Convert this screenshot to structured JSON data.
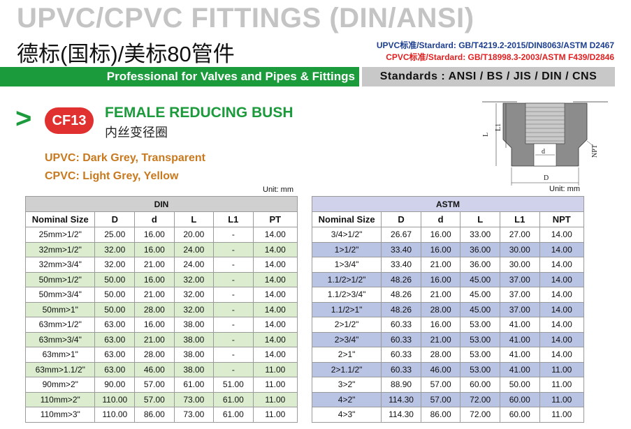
{
  "header": {
    "title_en": "UPVC/CPVC FITTINGS (DIN/ANSI)",
    "title_cn": "德标(国标)/美标80管件",
    "upvc_standard": "UPVC标准/Stardard: GB/T4219.2-2015/DIN8063/ASTM D2467",
    "cpvc_standard": "CPVC标准/Stardard: GB/T18998.3-2003/ASTM F439/D2846",
    "tagline": "Professional for Valves and Pipes & Fittings",
    "standards_band": "Standards : ANSI / BS / JIS / DIN / CNS"
  },
  "product": {
    "chevron": ">",
    "code": "CF13",
    "name_en": "FEMALE REDUCING BUSH",
    "name_cn": "内丝变径圈",
    "upvc_colors": "UPVC: Dark Grey, Transparent",
    "cpvc_colors": "CPVC: Light Grey, Yellow"
  },
  "diagram": {
    "unit": "Unit: mm",
    "labels": {
      "L": "L",
      "L1": "L1",
      "d": "d",
      "D": "D",
      "NPT": "NPT"
    }
  },
  "din_table": {
    "unit": "Unit: mm",
    "title": "DIN",
    "columns": [
      "Nominal Size",
      "D",
      "d",
      "L",
      "L1",
      "PT"
    ],
    "rows": [
      [
        "25mm>1/2\"",
        "25.00",
        "16.00",
        "20.00",
        "-",
        "14.00"
      ],
      [
        "32mm>1/2\"",
        "32.00",
        "16.00",
        "24.00",
        "-",
        "14.00"
      ],
      [
        "32mm>3/4\"",
        "32.00",
        "21.00",
        "24.00",
        "-",
        "14.00"
      ],
      [
        "50mm>1/2\"",
        "50.00",
        "16.00",
        "32.00",
        "-",
        "14.00"
      ],
      [
        "50mm>3/4\"",
        "50.00",
        "21.00",
        "32.00",
        "-",
        "14.00"
      ],
      [
        "50mm>1\"",
        "50.00",
        "28.00",
        "32.00",
        "-",
        "14.00"
      ],
      [
        "63mm>1/2\"",
        "63.00",
        "16.00",
        "38.00",
        "-",
        "14.00"
      ],
      [
        "63mm>3/4\"",
        "63.00",
        "21.00",
        "38.00",
        "-",
        "14.00"
      ],
      [
        "63mm>1\"",
        "63.00",
        "28.00",
        "38.00",
        "-",
        "14.00"
      ],
      [
        "63mm>1.1/2\"",
        "63.00",
        "46.00",
        "38.00",
        "-",
        "11.00"
      ],
      [
        "90mm>2\"",
        "90.00",
        "57.00",
        "61.00",
        "51.00",
        "11.00"
      ],
      [
        "110mm>2\"",
        "110.00",
        "57.00",
        "73.00",
        "61.00",
        "11.00"
      ],
      [
        "110mm>3\"",
        "110.00",
        "86.00",
        "73.00",
        "61.00",
        "11.00"
      ]
    ]
  },
  "astm_table": {
    "title": "ASTM",
    "columns": [
      "Nominal Size",
      "D",
      "d",
      "L",
      "L1",
      "NPT"
    ],
    "rows": [
      [
        "3/4>1/2\"",
        "26.67",
        "16.00",
        "33.00",
        "27.00",
        "14.00"
      ],
      [
        "1>1/2\"",
        "33.40",
        "16.00",
        "36.00",
        "30.00",
        "14.00"
      ],
      [
        "1>3/4\"",
        "33.40",
        "21.00",
        "36.00",
        "30.00",
        "14.00"
      ],
      [
        "1.1/2>1/2\"",
        "48.26",
        "16.00",
        "45.00",
        "37.00",
        "14.00"
      ],
      [
        "1.1/2>3/4\"",
        "48.26",
        "21.00",
        "45.00",
        "37.00",
        "14.00"
      ],
      [
        "1.1/2>1\"",
        "48.26",
        "28.00",
        "45.00",
        "37.00",
        "14.00"
      ],
      [
        "2>1/2\"",
        "60.33",
        "16.00",
        "53.00",
        "41.00",
        "14.00"
      ],
      [
        "2>3/4\"",
        "60.33",
        "21.00",
        "53.00",
        "41.00",
        "14.00"
      ],
      [
        "2>1\"",
        "60.33",
        "28.00",
        "53.00",
        "41.00",
        "14.00"
      ],
      [
        "2>1.1/2\"",
        "60.33",
        "46.00",
        "53.00",
        "41.00",
        "11.00"
      ],
      [
        "3>2\"",
        "88.90",
        "57.00",
        "60.00",
        "50.00",
        "11.00"
      ],
      [
        "4>2\"",
        "114.30",
        "57.00",
        "72.00",
        "60.00",
        "11.00"
      ],
      [
        "4>3\"",
        "114.30",
        "86.00",
        "72.00",
        "60.00",
        "11.00"
      ]
    ]
  },
  "colors": {
    "brand_green": "#1c9b3c",
    "badge_red": "#e03030",
    "title_grey": "#c4c4c4",
    "din_alt_row": "#dbeccf",
    "astm_alt_row": "#b9c3e4"
  }
}
